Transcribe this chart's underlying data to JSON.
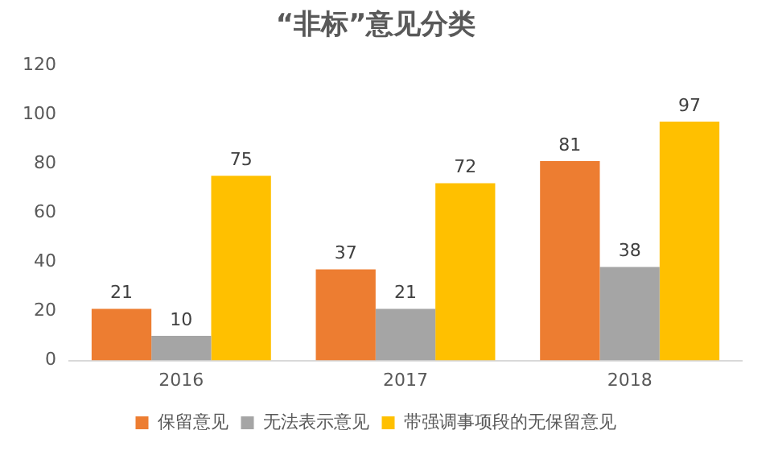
{
  "chart_data": {
    "type": "bar",
    "title": "“非标”意见分类",
    "categories": [
      "2016",
      "2017",
      "2018"
    ],
    "series": [
      {
        "name": "保留意见",
        "color": "#ed7d31",
        "values": [
          21,
          37,
          81
        ]
      },
      {
        "name": "无法表示意见",
        "color": "#a5a5a5",
        "values": [
          10,
          21,
          38
        ]
      },
      {
        "name": "带强调事项段的无保留意见",
        "color": "#ffc000",
        "values": [
          75,
          72,
          97
        ]
      }
    ],
    "ylim": [
      0,
      120
    ],
    "yticks": [
      0,
      20,
      40,
      60,
      80,
      100,
      120
    ],
    "grid": false,
    "legend": "bottom",
    "data_labels": true
  }
}
